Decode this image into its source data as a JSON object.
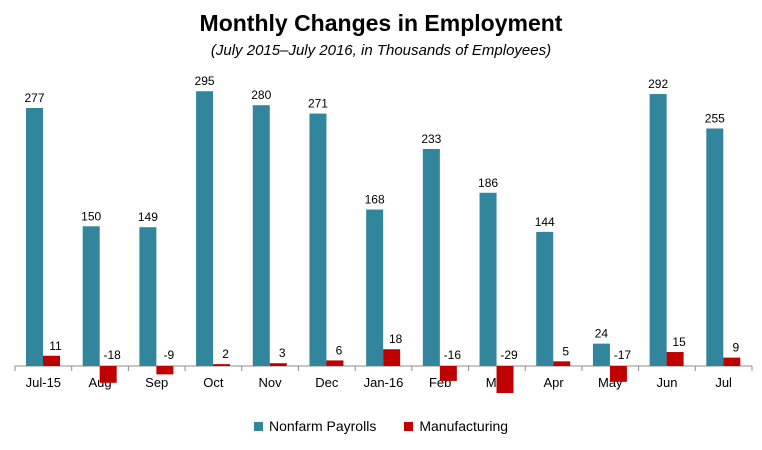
{
  "chart_data": {
    "type": "bar",
    "title": "Monthly Changes in Employment",
    "subtitle": "(July 2015–July 2016, in Thousands of Employees)",
    "xlabel": "",
    "ylabel": "",
    "ylim": [
      -35,
      310
    ],
    "grid": false,
    "legend_position": "bottom",
    "categories": [
      "Jul-15",
      "Aug",
      "Sep",
      "Oct",
      "Nov",
      "Dec",
      "Jan-16",
      "Feb",
      "Mar",
      "Apr",
      "May",
      "Jun",
      "Jul"
    ],
    "series": [
      {
        "name": "Nonfarm Payrolls",
        "color": "#31859C",
        "values": [
          277,
          150,
          149,
          295,
          280,
          271,
          168,
          233,
          186,
          144,
          24,
          292,
          255
        ]
      },
      {
        "name": "Manufacturing",
        "color": "#C00000",
        "values": [
          11,
          -18,
          -9,
          2,
          3,
          6,
          18,
          -16,
          -29,
          5,
          -17,
          15,
          9
        ]
      }
    ]
  }
}
